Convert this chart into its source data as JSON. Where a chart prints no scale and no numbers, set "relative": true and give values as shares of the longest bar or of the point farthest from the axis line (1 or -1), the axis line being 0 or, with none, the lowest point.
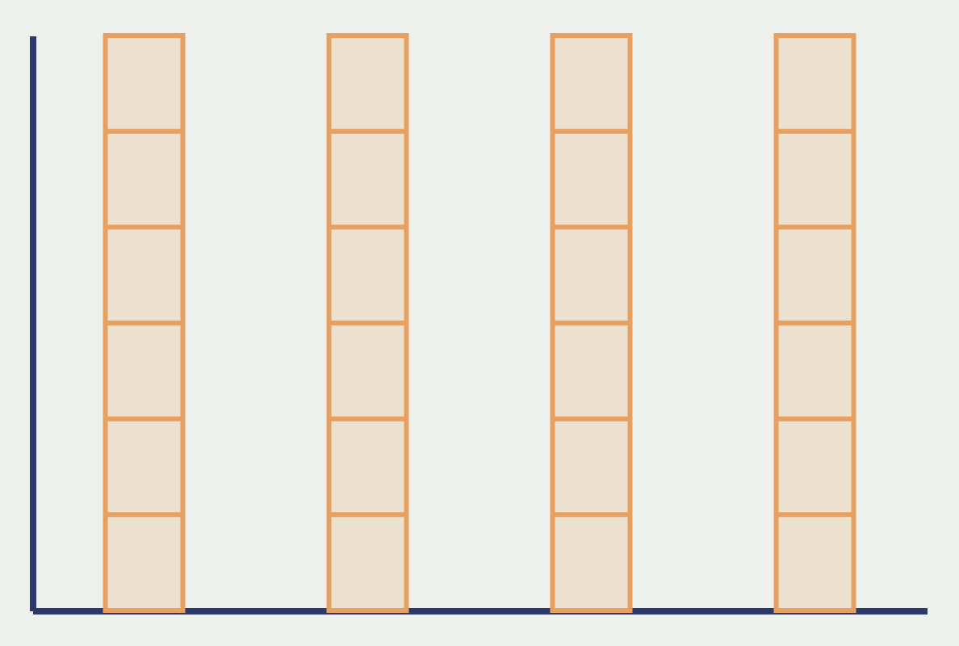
{
  "chart_data": {
    "type": "bar",
    "relative": true,
    "categories": [
      null,
      null,
      null,
      null
    ],
    "series": [
      {
        "color": "#e8a060",
        "values": [
          1,
          1,
          1,
          1
        ]
      }
    ],
    "grid": false,
    "legend": false
  }
}
